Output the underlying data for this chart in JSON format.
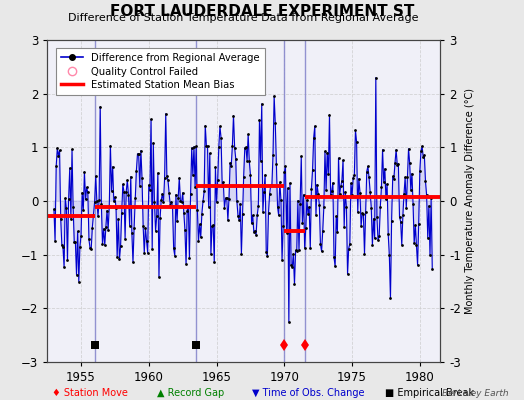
{
  "title": "FORT LAUDERDALE EXPERIMENT ST",
  "subtitle": "Difference of Station Temperature Data from Regional Average",
  "ylabel_right": "Monthly Temperature Anomaly Difference (°C)",
  "xlim": [
    1952.5,
    1981.5
  ],
  "ylim": [
    -3,
    3
  ],
  "yticks": [
    -3,
    -2,
    -1,
    0,
    1,
    2,
    3
  ],
  "xticks": [
    1955,
    1960,
    1965,
    1970,
    1975,
    1980
  ],
  "background_color": "#e8e8e8",
  "plot_bg_color": "#f0f0f8",
  "grid_color": "#cccccc",
  "watermark": "Berkeley Earth",
  "vertical_lines_color": "#8888cc",
  "vertical_lines": [
    1956.0,
    1963.5,
    1970.0,
    1971.5
  ],
  "segment_biases": [
    {
      "x_start": 1952.5,
      "x_end": 1956.0,
      "bias": -0.28
    },
    {
      "x_start": 1956.0,
      "x_end": 1963.5,
      "bias": -0.12
    },
    {
      "x_start": 1963.5,
      "x_end": 1970.0,
      "bias": 0.28
    },
    {
      "x_start": 1970.0,
      "x_end": 1971.5,
      "bias": -0.55
    },
    {
      "x_start": 1971.5,
      "x_end": 1981.5,
      "bias": 0.08
    }
  ],
  "station_moves": [
    1970.0,
    1971.5
  ],
  "empirical_breaks": [
    1956.0,
    1963.5
  ],
  "line_color": "#0000cc",
  "fill_color": "#aaaaee",
  "bias_line_color": "#ff0000",
  "marker_color": "#000000",
  "seed": 17,
  "amplitude": 0.75,
  "noise_scale": 0.45
}
